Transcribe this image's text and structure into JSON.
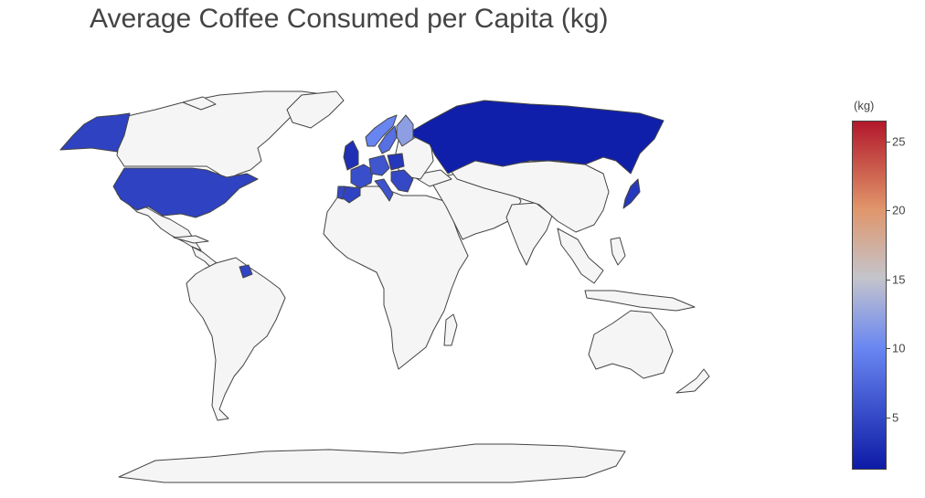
{
  "title": "Average Coffee Consumed per Capita (kg)",
  "colorbar": {
    "unit": "(kg)",
    "min": 1.2,
    "max": 26.5,
    "ticks": [
      {
        "value": 25,
        "label": "25"
      },
      {
        "value": 20,
        "label": "20"
      },
      {
        "value": 15,
        "label": "15"
      },
      {
        "value": 10,
        "label": "10"
      },
      {
        "value": 5,
        "label": "5"
      }
    ],
    "colors": {
      "low": "#0d1ba6",
      "mid_low": "#6a87f2",
      "mid": "#c4c4cc",
      "mid_high": "#e0956a",
      "high": "#b2182b",
      "no_data": "#f5f5f5",
      "border": "#444444"
    }
  },
  "countries": [
    {
      "name": "Alaska (USA)",
      "value": 4.4
    },
    {
      "name": "United States",
      "value": 4.4
    },
    {
      "name": "Suriname",
      "value": 4.6
    },
    {
      "name": "Russia",
      "value": 1.5
    },
    {
      "name": "Japan",
      "value": 3.6
    },
    {
      "name": "United Kingdom",
      "value": 2.9
    },
    {
      "name": "France",
      "value": 5.4
    },
    {
      "name": "Spain",
      "value": 4.5
    },
    {
      "name": "Portugal",
      "value": 4.9
    },
    {
      "name": "Italy",
      "value": 5.9
    },
    {
      "name": "Germany",
      "value": 6.0
    },
    {
      "name": "Poland",
      "value": 3.5
    },
    {
      "name": "Norway",
      "value": 9.9
    },
    {
      "name": "Sweden",
      "value": 8.2
    },
    {
      "name": "Finland",
      "value": 12.0
    },
    {
      "name": "Balkans",
      "value": 5.0
    }
  ]
}
